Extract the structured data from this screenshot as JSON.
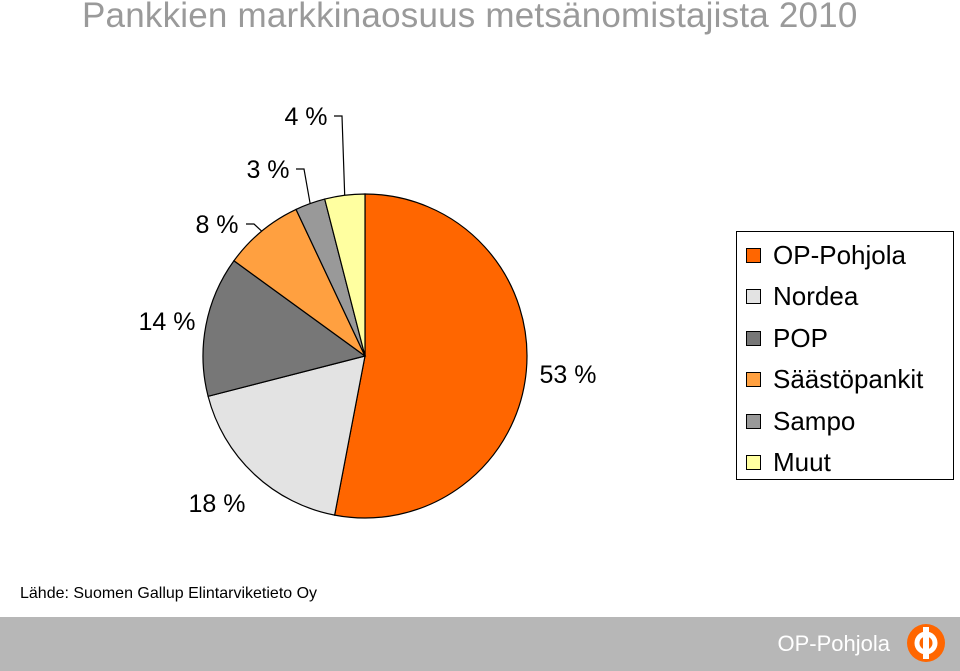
{
  "title": "Pankkien markkinaosuus metsänomistajista 2010",
  "source": "Lähde: Suomen Gallup Elintarviketieto Oy",
  "footer": {
    "brand_text": "OP-Pohjola"
  },
  "colors": {
    "OP-Pohjola": "#ff6600",
    "Nordea": "#e3e3e3",
    "POP": "#777777",
    "Säästöpankit": "#ffa040",
    "Sampo": "#999999",
    "Muut": "#ffffa0",
    "footer": "#b7b7b7"
  },
  "chart_data": {
    "type": "pie",
    "title": "Pankkien markkinaosuus metsänomistajista 2010",
    "unit": "%",
    "legend_position": "right",
    "slices": [
      {
        "label": "OP-Pohjola",
        "value": 53,
        "value_label": "53 %"
      },
      {
        "label": "Nordea",
        "value": 18,
        "value_label": "18 %"
      },
      {
        "label": "POP",
        "value": 14,
        "value_label": "14 %"
      },
      {
        "label": "Säästöpankit",
        "value": 8,
        "value_label": "8 %"
      },
      {
        "label": "Sampo",
        "value": 3,
        "value_label": "3 %"
      },
      {
        "label": "Muut",
        "value": 4,
        "value_label": "4 %"
      }
    ]
  }
}
